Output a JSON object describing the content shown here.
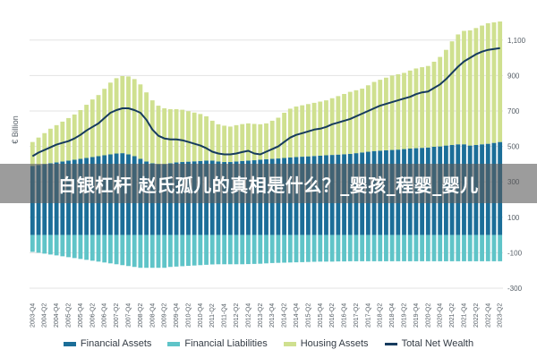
{
  "chart_data": {
    "type": "bar",
    "subtype": "stacked bar with line",
    "ylabel": "€ Billion",
    "ylim": [
      -300,
      1200
    ],
    "yticks": [
      -300,
      -100,
      100,
      300,
      500,
      700,
      900,
      1100
    ],
    "ytick_labels": [
      "-300",
      "-100",
      "100",
      "300",
      "500",
      "700",
      "900",
      "1,100"
    ],
    "grid": true,
    "legend_position": "bottom",
    "x": [
      "2003-Q4",
      "2004-Q1",
      "2004-Q2",
      "2004-Q3",
      "2004-Q4",
      "2005-Q1",
      "2005-Q2",
      "2005-Q3",
      "2005-Q4",
      "2006-Q1",
      "2006-Q2",
      "2006-Q3",
      "2006-Q4",
      "2007-Q1",
      "2007-Q2",
      "2007-Q3",
      "2007-Q4",
      "2008-Q1",
      "2008-Q2",
      "2008-Q3",
      "2008-Q4",
      "2009-Q1",
      "2009-Q2",
      "2009-Q3",
      "2009-Q4",
      "2010-Q1",
      "2010-Q2",
      "2010-Q3",
      "2010-Q4",
      "2011-Q1",
      "2011-Q2",
      "2011-Q3",
      "2011-Q4",
      "2012-Q1",
      "2012-Q2",
      "2012-Q3",
      "2012-Q4",
      "2013-Q1",
      "2013-Q2",
      "2013-Q3",
      "2013-Q4",
      "2014-Q1",
      "2014-Q2",
      "2014-Q3",
      "2014-Q4",
      "2015-Q1",
      "2015-Q2",
      "2015-Q3",
      "2015-Q4",
      "2016-Q1",
      "2016-Q2",
      "2016-Q3",
      "2016-Q4",
      "2017-Q1",
      "2017-Q2",
      "2017-Q3",
      "2017-Q4",
      "2018-Q1",
      "2018-Q2",
      "2018-Q3",
      "2018-Q4",
      "2019-Q1",
      "2019-Q2",
      "2019-Q3",
      "2019-Q4",
      "2020-Q1",
      "2020-Q2",
      "2020-Q3",
      "2020-Q4",
      "2021-Q1",
      "2021-Q2",
      "2021-Q3",
      "2021-Q4",
      "2022-Q1",
      "2022-Q2",
      "2022-Q3",
      "2022-Q4",
      "2023-Q1",
      "2023-Q2"
    ],
    "x_tick_labels": [
      "2003-Q4",
      "2004-Q2",
      "2004-Q4",
      "2005-Q2",
      "2005-Q4",
      "2006-Q2",
      "2006-Q4",
      "2007-Q2",
      "2007-Q4",
      "2008-Q2",
      "2008-Q4",
      "2009-Q2",
      "2009-Q4",
      "2010-Q2",
      "2010-Q4",
      "2011-Q2",
      "2011-Q4",
      "2012-Q2",
      "2012-Q4",
      "2013-Q2",
      "2013-Q4",
      "2014-Q2",
      "2014-Q4",
      "2015-Q2",
      "2015-Q4",
      "2016-Q2",
      "2016-Q4",
      "2017-Q2",
      "2017-Q4",
      "2018-Q2",
      "2018-Q4",
      "2019-Q2",
      "2019-Q4",
      "2020-Q2",
      "2020-Q4",
      "2021-Q2",
      "2021-Q4",
      "2022-Q2",
      "2022-Q4",
      "2023-Q2"
    ],
    "series": [
      {
        "name": "Financial Assets",
        "type": "bar",
        "color": "#1b6e98",
        "values": [
          390,
          395,
          400,
          405,
          410,
          415,
          420,
          425,
          430,
          435,
          440,
          445,
          450,
          455,
          460,
          462,
          455,
          445,
          430,
          415,
          405,
          400,
          400,
          405,
          410,
          412,
          414,
          416,
          418,
          420,
          420,
          415,
          412,
          412,
          415,
          418,
          420,
          422,
          425,
          428,
          430,
          432,
          435,
          438,
          440,
          442,
          444,
          446,
          448,
          450,
          452,
          454,
          456,
          458,
          462,
          466,
          470,
          474,
          476,
          478,
          480,
          482,
          485,
          488,
          490,
          492,
          494,
          498,
          500,
          505,
          508,
          512,
          512,
          505,
          508,
          512,
          515,
          520,
          525
        ]
      },
      {
        "name": "Financial Liabilities",
        "type": "bar",
        "color": "#5fc4c8",
        "values": [
          -95,
          -100,
          -105,
          -110,
          -115,
          -120,
          -125,
          -130,
          -135,
          -140,
          -145,
          -150,
          -155,
          -160,
          -165,
          -170,
          -175,
          -180,
          -185,
          -185,
          -185,
          -185,
          -185,
          -180,
          -178,
          -176,
          -174,
          -172,
          -170,
          -168,
          -166,
          -165,
          -165,
          -165,
          -165,
          -165,
          -164,
          -163,
          -162,
          -160,
          -158,
          -157,
          -156,
          -155,
          -154,
          -153,
          -152,
          -151,
          -150,
          -150,
          -150,
          -149,
          -149,
          -148,
          -148,
          -148,
          -148,
          -148,
          -148,
          -148,
          -148,
          -148,
          -148,
          -148,
          -148,
          -148,
          -148,
          -148,
          -148,
          -148,
          -148,
          -148,
          -148,
          -148,
          -148,
          -148,
          -148,
          -148,
          -148
        ]
      },
      {
        "name": "Housing Assets",
        "type": "bar",
        "color": "#cfe08f",
        "values": [
          135,
          155,
          175,
          195,
          210,
          225,
          240,
          255,
          275,
          300,
          325,
          345,
          375,
          405,
          425,
          435,
          440,
          435,
          420,
          390,
          355,
          330,
          315,
          305,
          300,
          295,
          285,
          275,
          265,
          250,
          225,
          210,
          205,
          200,
          205,
          208,
          210,
          205,
          200,
          202,
          215,
          230,
          255,
          275,
          285,
          290,
          295,
          300,
          305,
          310,
          320,
          330,
          340,
          350,
          355,
          360,
          375,
          390,
          400,
          410,
          420,
          425,
          430,
          440,
          450,
          455,
          460,
          480,
          505,
          540,
          585,
          620,
          640,
          650,
          660,
          670,
          680,
          680,
          680
        ]
      },
      {
        "name": "Total Net Wealth",
        "type": "line",
        "color": "#163b5e",
        "values": [
          445,
          465,
          480,
          495,
          510,
          520,
          530,
          545,
          565,
          590,
          610,
          630,
          660,
          690,
          705,
          715,
          715,
          705,
          690,
          650,
          595,
          560,
          545,
          540,
          540,
          535,
          525,
          515,
          505,
          490,
          470,
          460,
          455,
          455,
          460,
          468,
          475,
          460,
          455,
          470,
          485,
          500,
          525,
          550,
          565,
          575,
          585,
          595,
          600,
          610,
          625,
          635,
          645,
          655,
          670,
          685,
          700,
          715,
          730,
          740,
          750,
          760,
          770,
          780,
          795,
          805,
          810,
          830,
          850,
          880,
          915,
          950,
          980,
          1000,
          1020,
          1035,
          1045,
          1050,
          1055
        ]
      }
    ]
  },
  "overlay": {
    "text": "白银杠杆 赵氏孤儿的真相是什么？_婴孩_程婴_婴儿"
  }
}
